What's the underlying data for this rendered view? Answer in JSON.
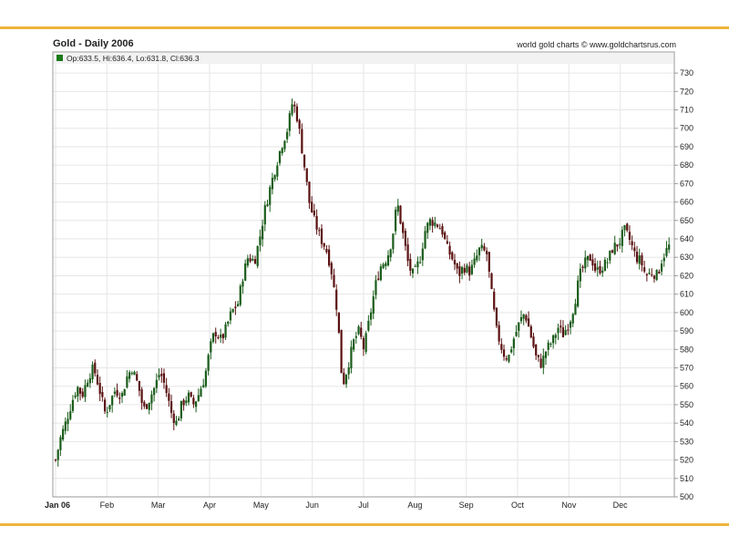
{
  "chart_data": {
    "type": "candlestick",
    "title": "Gold - Daily 2006",
    "credit": "world gold charts © www.goldchartsrus.com",
    "ohlc_readout": "Op:633.5, Hi:636.4, Lo:631.8, Cl:636.3",
    "ohlc_marker_color": "#1a7a1a",
    "up_color": "#1a5c1a",
    "down_color": "#5a1010",
    "grid": true,
    "ylim": [
      500,
      735
    ],
    "y_ticks": [
      500,
      510,
      520,
      530,
      540,
      550,
      560,
      570,
      580,
      590,
      600,
      610,
      620,
      630,
      640,
      650,
      660,
      670,
      680,
      690,
      700,
      710,
      720,
      730
    ],
    "x_ticks": [
      "Jan 06",
      "Feb",
      "Mar",
      "Apr",
      "May",
      "Jun",
      "Jul",
      "Aug",
      "Sep",
      "Oct",
      "Nov",
      "Dec"
    ],
    "close_series": [
      [
        0,
        520
      ],
      [
        0.3,
        532
      ],
      [
        0.6,
        540
      ],
      [
        1.0,
        552
      ],
      [
        1.3,
        560
      ],
      [
        1.6,
        555
      ],
      [
        2.0,
        566
      ],
      [
        2.3,
        570
      ],
      [
        2.6,
        560
      ],
      [
        3.0,
        545
      ],
      [
        3.3,
        552
      ],
      [
        3.6,
        558
      ],
      [
        4.0,
        555
      ],
      [
        4.3,
        565
      ],
      [
        4.6,
        570
      ],
      [
        5.0,
        560
      ],
      [
        5.3,
        547
      ],
      [
        5.6,
        552
      ],
      [
        6.0,
        560
      ],
      [
        6.3,
        568
      ],
      [
        6.6,
        560
      ],
      [
        7.0,
        545
      ],
      [
        7.3,
        540
      ],
      [
        7.6,
        550
      ],
      [
        8.0,
        555
      ],
      [
        8.3,
        550
      ],
      [
        8.6,
        555
      ],
      [
        9.0,
        565
      ],
      [
        9.3,
        580
      ],
      [
        9.6,
        590
      ],
      [
        10.0,
        585
      ],
      [
        10.3,
        592
      ],
      [
        10.6,
        600
      ],
      [
        11.0,
        605
      ],
      [
        11.3,
        620
      ],
      [
        11.6,
        630
      ],
      [
        12.0,
        628
      ],
      [
        12.3,
        640
      ],
      [
        12.6,
        655
      ],
      [
        13.0,
        670
      ],
      [
        13.3,
        680
      ],
      [
        13.6,
        690
      ],
      [
        14.0,
        700
      ],
      [
        14.3,
        715
      ],
      [
        14.6,
        705
      ],
      [
        15.0,
        680
      ],
      [
        15.3,
        660
      ],
      [
        15.6,
        650
      ],
      [
        16.0,
        640
      ],
      [
        16.3,
        635
      ],
      [
        16.6,
        625
      ],
      [
        17.0,
        600
      ],
      [
        17.3,
        560
      ],
      [
        17.6,
        570
      ],
      [
        18.0,
        585
      ],
      [
        18.3,
        590
      ],
      [
        18.6,
        580
      ],
      [
        19.0,
        600
      ],
      [
        19.3,
        615
      ],
      [
        19.6,
        625
      ],
      [
        20.0,
        630
      ],
      [
        20.3,
        640
      ],
      [
        20.6,
        660
      ],
      [
        21.0,
        640
      ],
      [
        21.3,
        625
      ],
      [
        21.6,
        620
      ],
      [
        22.0,
        630
      ],
      [
        22.3,
        645
      ],
      [
        22.6,
        650
      ],
      [
        23.0,
        648
      ],
      [
        23.3,
        645
      ],
      [
        23.6,
        635
      ],
      [
        24.0,
        628
      ],
      [
        24.3,
        620
      ],
      [
        24.6,
        625
      ],
      [
        25.0,
        622
      ],
      [
        25.3,
        628
      ],
      [
        25.6,
        635
      ],
      [
        26.0,
        632
      ],
      [
        26.3,
        610
      ],
      [
        26.6,
        590
      ],
      [
        27.0,
        578
      ],
      [
        27.3,
        575
      ],
      [
        27.6,
        585
      ],
      [
        28.0,
        595
      ],
      [
        28.3,
        600
      ],
      [
        28.6,
        590
      ],
      [
        29.0,
        575
      ],
      [
        29.3,
        572
      ],
      [
        29.6,
        580
      ],
      [
        30.0,
        585
      ],
      [
        30.3,
        592
      ],
      [
        30.6,
        588
      ],
      [
        31.0,
        595
      ],
      [
        31.3,
        605
      ],
      [
        31.6,
        620
      ],
      [
        32.0,
        628
      ],
      [
        32.3,
        630
      ],
      [
        32.6,
        622
      ],
      [
        33.0,
        625
      ],
      [
        33.3,
        628
      ],
      [
        33.6,
        635
      ],
      [
        34.0,
        638
      ],
      [
        34.3,
        645
      ],
      [
        34.6,
        640
      ],
      [
        35.0,
        630
      ],
      [
        35.3,
        628
      ],
      [
        35.6,
        620
      ],
      [
        36.0,
        622
      ],
      [
        36.3,
        620
      ],
      [
        36.6,
        630
      ],
      [
        37.0,
        636
      ]
    ]
  }
}
